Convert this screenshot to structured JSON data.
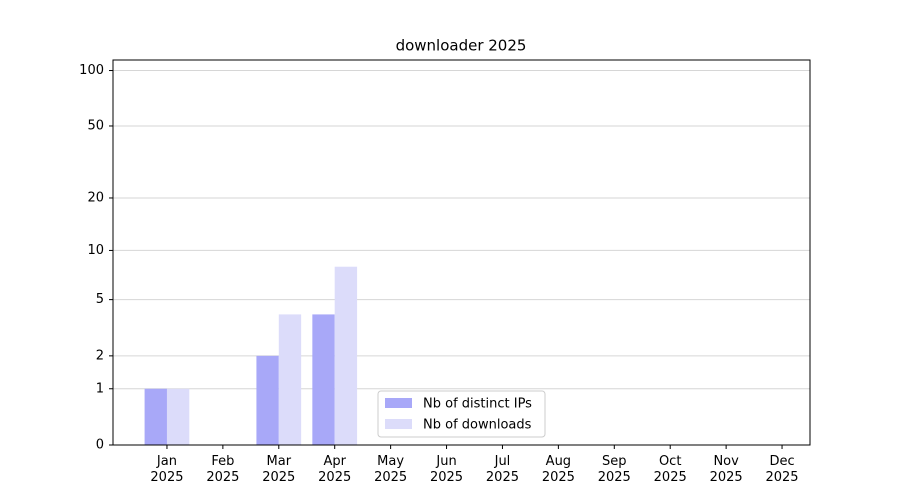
{
  "chart_data": {
    "type": "bar",
    "title": "downloader 2025",
    "categories": [
      "Jan 2025",
      "Feb 2025",
      "Mar 2025",
      "Apr 2025",
      "May 2025",
      "Jun 2025",
      "Jul 2025",
      "Aug 2025",
      "Sep 2025",
      "Oct 2025",
      "Nov 2025",
      "Dec 2025"
    ],
    "series": [
      {
        "name": "Nb of distinct IPs",
        "color": "#a8a8f8",
        "values": [
          1,
          0,
          2,
          4,
          0,
          0,
          0,
          0,
          0,
          0,
          0,
          0
        ]
      },
      {
        "name": "Nb of downloads",
        "color": "#dcdcfa",
        "values": [
          1,
          0,
          4,
          8,
          0,
          0,
          0,
          0,
          0,
          0,
          0,
          0
        ]
      }
    ],
    "yscale": "log1p",
    "ylim": [
      0,
      114
    ],
    "yticks": [
      0,
      1,
      2,
      5,
      10,
      20,
      50,
      100
    ],
    "grid": true,
    "legend": "lower center"
  }
}
